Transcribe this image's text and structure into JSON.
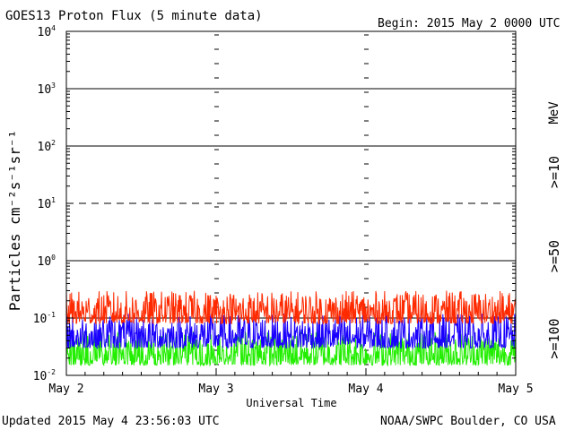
{
  "header": {
    "title": "GOES13 Proton Flux (5 minute data)",
    "begin": "Begin: 2015 May 2 0000 UTC"
  },
  "footer": {
    "updated": "Updated 2015 May  4 23:56:03 UTC",
    "credit": "NOAA/SWPC Boulder, CO USA"
  },
  "energy_labels": {
    "unit": "MeV",
    "ch10": ">=10",
    "ch50": ">=50",
    "ch100": ">=100"
  },
  "colors": {
    "ch10": "#ff2a00",
    "ch50": "#1a00ff",
    "ch100": "#22ee00",
    "axis": "#000000"
  },
  "chart_data": {
    "type": "line",
    "title": "GOES13 Proton Flux (5 minute data)",
    "xlabel": "Universal Time",
    "ylabel": "Particles cm⁻²s⁻¹sr⁻¹",
    "y_scale": "log",
    "ylim": [
      0.01,
      10000
    ],
    "y_ticks": [
      {
        "value": 0.01,
        "base": "10",
        "exp": "-2"
      },
      {
        "value": 0.1,
        "base": "10",
        "exp": "-1"
      },
      {
        "value": 1,
        "base": "10",
        "exp": "0"
      },
      {
        "value": 10,
        "base": "10",
        "exp": "1"
      },
      {
        "value": 100,
        "base": "10",
        "exp": "2"
      },
      {
        "value": 1000,
        "base": "10",
        "exp": "3"
      },
      {
        "value": 10000,
        "base": "10",
        "exp": "4"
      }
    ],
    "x_ticks": [
      "May 2",
      "May 3",
      "May 4",
      "May 5"
    ],
    "x_range": [
      "2015-05-02T00:00Z",
      "2015-05-05T00:00Z"
    ],
    "reference_lines": [
      {
        "value": 1000,
        "style": "solid"
      },
      {
        "value": 100,
        "style": "solid"
      },
      {
        "value": 10,
        "style": "dashed"
      },
      {
        "value": 1,
        "style": "solid"
      },
      {
        "value": 0.1,
        "style": "solid"
      }
    ],
    "series": [
      {
        "name": ">=10 MeV",
        "color": "#ff2a00",
        "baseline": 0.1,
        "range": [
          0.08,
          0.3
        ]
      },
      {
        "name": ">=50 MeV",
        "color": "#1a00ff",
        "baseline": 0.05,
        "range": [
          0.03,
          0.12
        ]
      },
      {
        "name": ">=100 MeV",
        "color": "#22ee00",
        "baseline": 0.025,
        "range": [
          0.015,
          0.06
        ]
      }
    ]
  }
}
